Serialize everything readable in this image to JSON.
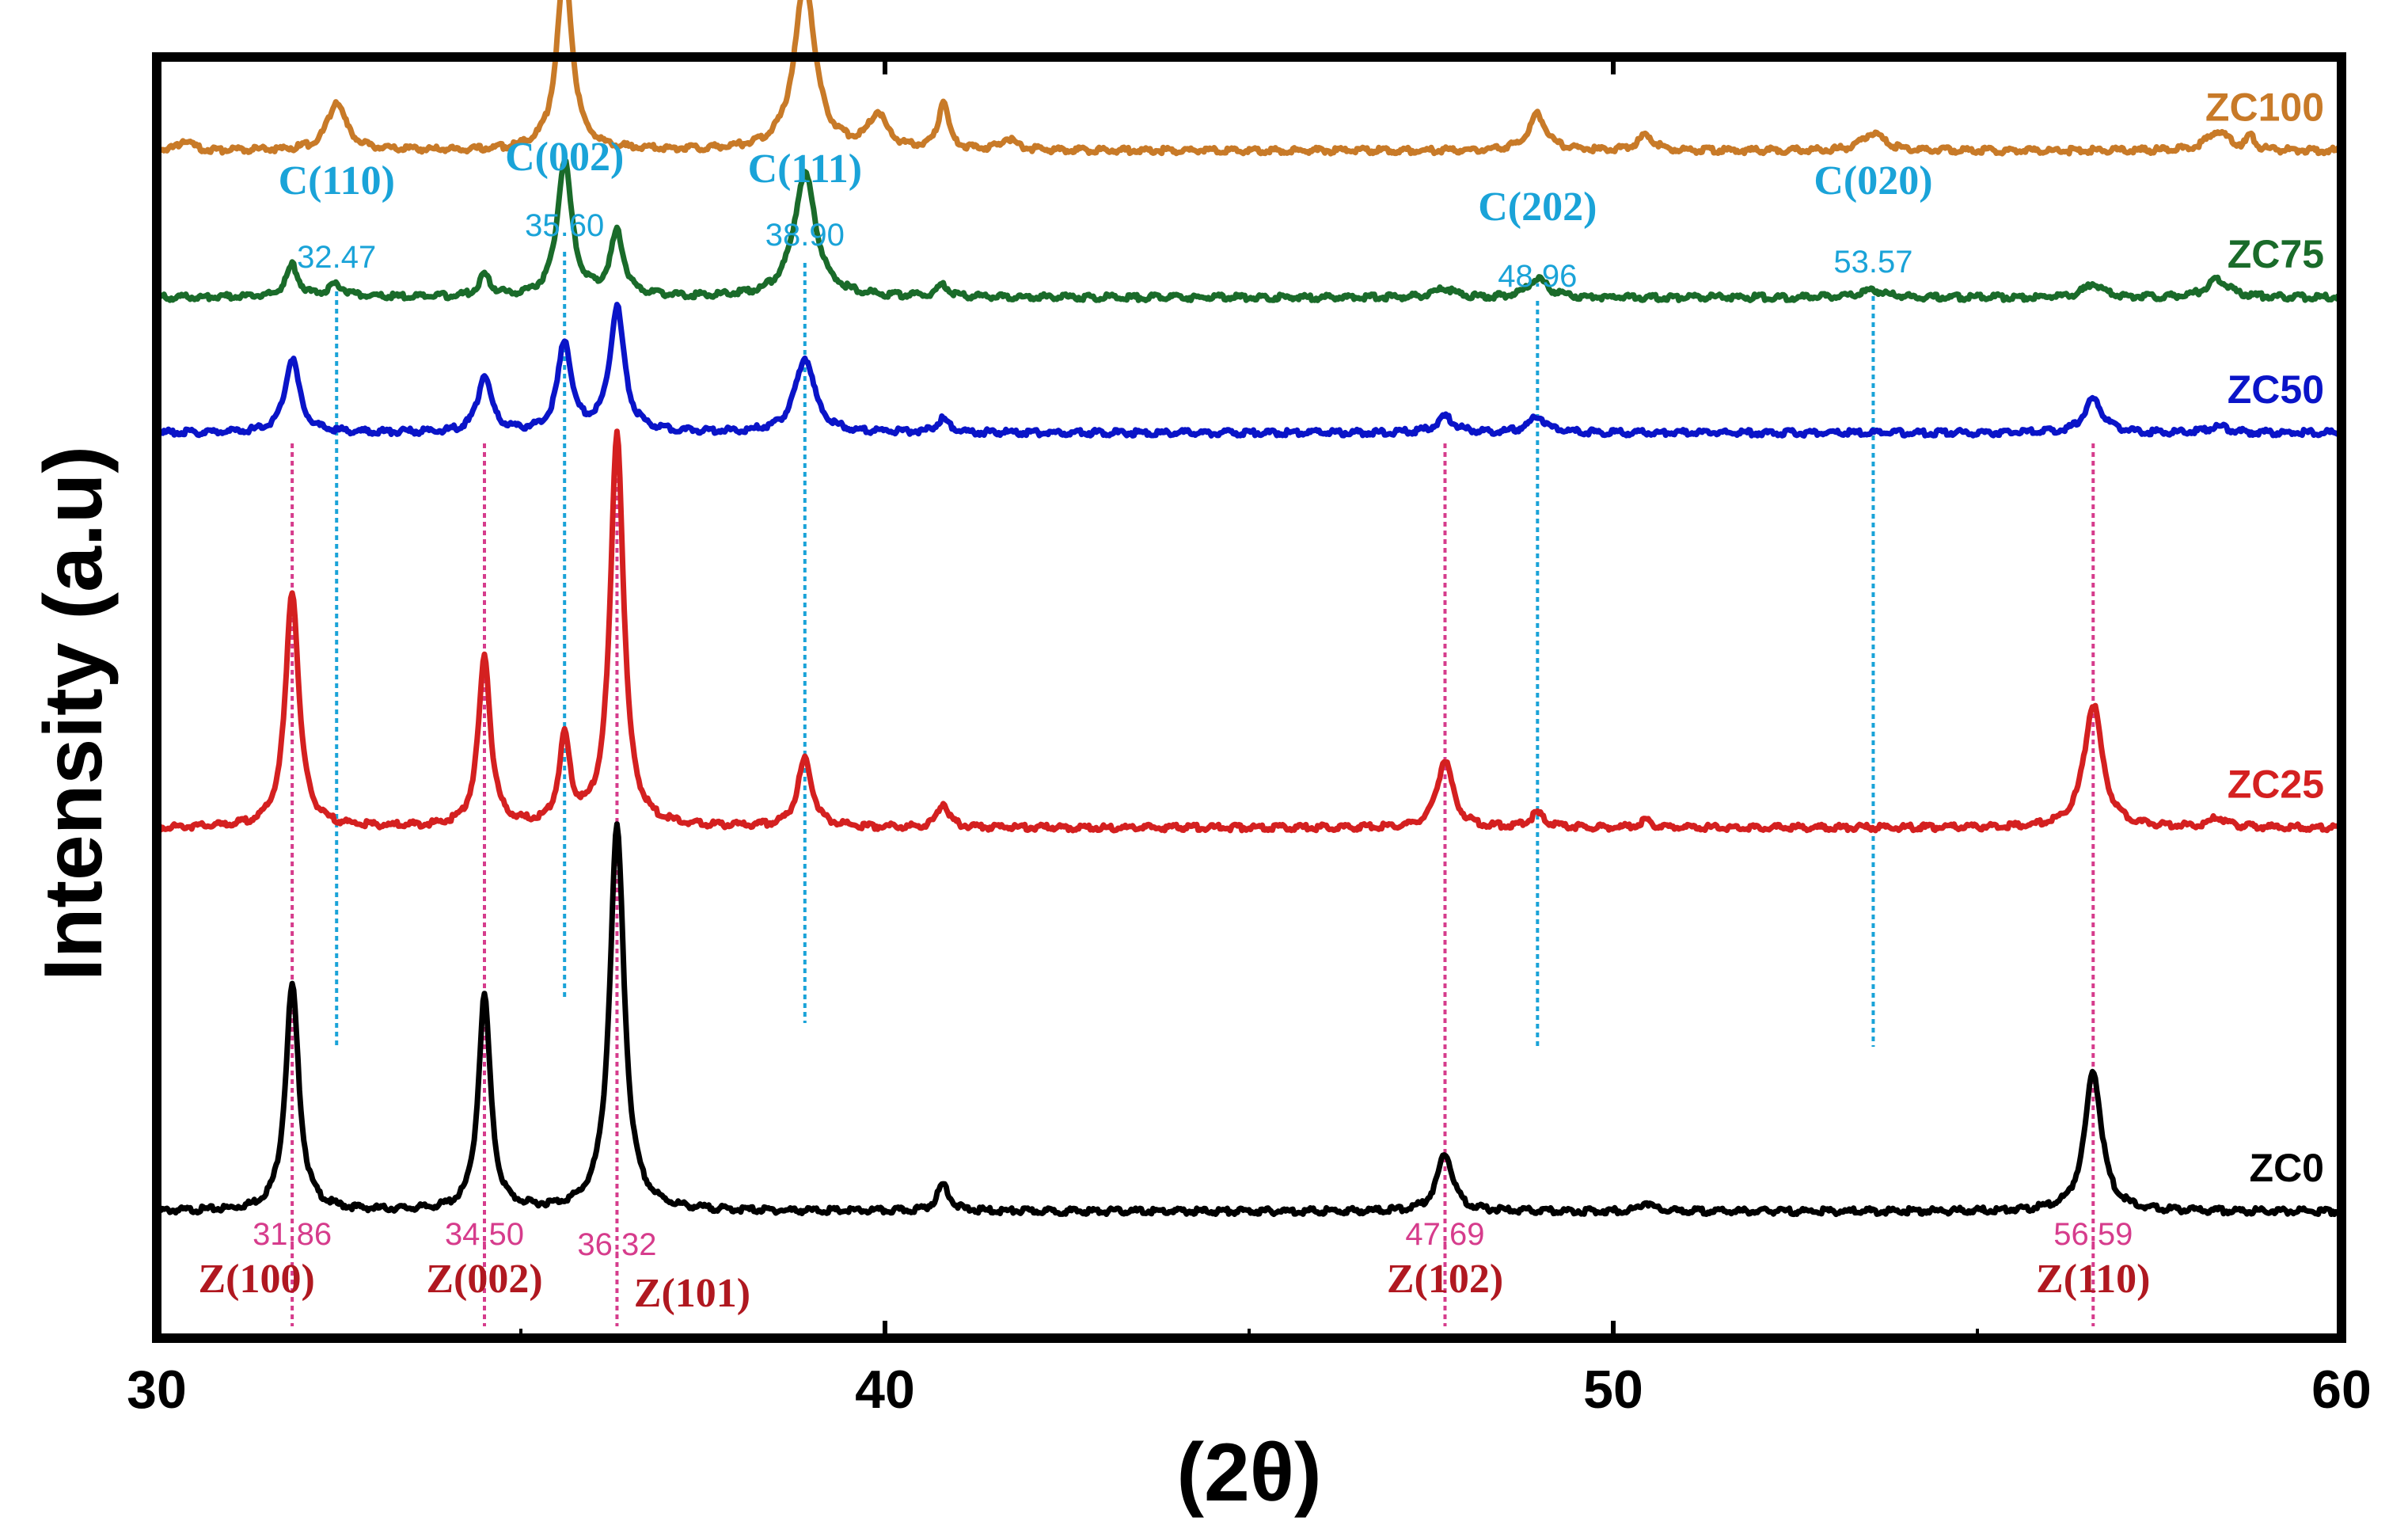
{
  "chart_data": {
    "type": "line",
    "title": "",
    "xlabel": "(2θ)",
    "ylabel": "Intensity (a.u)",
    "xlim": [
      30,
      60
    ],
    "x_ticks": [
      30,
      40,
      50,
      60
    ],
    "x_tick_labels": [
      "30",
      "40",
      "50",
      "60"
    ],
    "y_ticks": [],
    "grid": false,
    "legend": "inline labels at right end of each trace",
    "colors": {
      "ZC0": "#000000",
      "ZC25": "#d42020",
      "ZC50": "#0a14c8",
      "ZC75": "#1a6b2a",
      "ZC100": "#c87a28",
      "c_phase": "#1aa3d8",
      "z_phase": "#d63c8c",
      "z_phase_label": "#b01820"
    },
    "series": [
      {
        "name": "ZC0",
        "baseline": 0,
        "peaks": [
          {
            "x": 31.86,
            "h": 100,
            "w": 0.22
          },
          {
            "x": 34.5,
            "h": 95,
            "w": 0.2
          },
          {
            "x": 36.32,
            "h": 170,
            "w": 0.24
          },
          {
            "x": 40.8,
            "h": 12,
            "w": 0.2
          },
          {
            "x": 47.69,
            "h": 26,
            "w": 0.26
          },
          {
            "x": 50.45,
            "h": 4,
            "w": 0.2
          },
          {
            "x": 56.59,
            "h": 62,
            "w": 0.28
          }
        ]
      },
      {
        "name": "ZC25",
        "baseline": 170,
        "peaks": [
          {
            "x": 31.86,
            "h": 105,
            "w": 0.22
          },
          {
            "x": 34.5,
            "h": 75,
            "w": 0.2
          },
          {
            "x": 35.6,
            "h": 38,
            "w": 0.18
          },
          {
            "x": 36.32,
            "h": 175,
            "w": 0.22
          },
          {
            "x": 38.9,
            "h": 30,
            "w": 0.24
          },
          {
            "x": 40.8,
            "h": 11,
            "w": 0.18
          },
          {
            "x": 47.69,
            "h": 30,
            "w": 0.26
          },
          {
            "x": 48.96,
            "h": 6,
            "w": 0.24
          },
          {
            "x": 50.45,
            "h": 3,
            "w": 0.2
          },
          {
            "x": 56.59,
            "h": 55,
            "w": 0.3
          },
          {
            "x": 58.3,
            "h": 4,
            "w": 0.3
          }
        ]
      },
      {
        "name": "ZC50",
        "baseline": 345,
        "peaks": [
          {
            "x": 31.86,
            "h": 33,
            "w": 0.24
          },
          {
            "x": 34.5,
            "h": 25,
            "w": 0.22
          },
          {
            "x": 35.6,
            "h": 40,
            "w": 0.22
          },
          {
            "x": 36.32,
            "h": 55,
            "w": 0.24
          },
          {
            "x": 38.9,
            "h": 33,
            "w": 0.32
          },
          {
            "x": 40.8,
            "h": 6,
            "w": 0.2
          },
          {
            "x": 47.69,
            "h": 7,
            "w": 0.3
          },
          {
            "x": 48.96,
            "h": 7,
            "w": 0.3
          },
          {
            "x": 56.59,
            "h": 15,
            "w": 0.3
          },
          {
            "x": 58.3,
            "h": 3,
            "w": 0.3
          }
        ]
      },
      {
        "name": "ZC75",
        "baseline": 405,
        "peaks": [
          {
            "x": 31.86,
            "h": 14,
            "w": 0.2
          },
          {
            "x": 32.47,
            "h": 5,
            "w": 0.3
          },
          {
            "x": 34.5,
            "h": 9,
            "w": 0.2
          },
          {
            "x": 35.6,
            "h": 60,
            "w": 0.24
          },
          {
            "x": 36.32,
            "h": 28,
            "w": 0.22
          },
          {
            "x": 38.9,
            "h": 55,
            "w": 0.36
          },
          {
            "x": 40.8,
            "h": 5,
            "w": 0.2
          },
          {
            "x": 47.69,
            "h": 4,
            "w": 0.3
          },
          {
            "x": 48.96,
            "h": 9,
            "w": 0.3
          },
          {
            "x": 53.57,
            "h": 3,
            "w": 0.4
          },
          {
            "x": 56.59,
            "h": 6,
            "w": 0.3
          },
          {
            "x": 58.3,
            "h": 8,
            "w": 0.35
          }
        ]
      },
      {
        "name": "ZC100",
        "baseline": 470,
        "peaks": [
          {
            "x": 30.4,
            "h": 5,
            "w": 0.2
          },
          {
            "x": 32.47,
            "h": 22,
            "w": 0.3
          },
          {
            "x": 35.6,
            "h": 82,
            "w": 0.25
          },
          {
            "x": 38.9,
            "h": 75,
            "w": 0.34
          },
          {
            "x": 39.9,
            "h": 15,
            "w": 0.3
          },
          {
            "x": 40.8,
            "h": 22,
            "w": 0.15
          },
          {
            "x": 41.7,
            "h": 5,
            "w": 0.25
          },
          {
            "x": 48.96,
            "h": 16,
            "w": 0.3
          },
          {
            "x": 50.45,
            "h": 7,
            "w": 0.25
          },
          {
            "x": 53.57,
            "h": 8,
            "w": 0.35
          },
          {
            "x": 58.3,
            "h": 9,
            "w": 0.35
          },
          {
            "x": 58.75,
            "h": 6,
            "w": 0.12
          }
        ]
      }
    ],
    "annotations": {
      "c_phase": [
        {
          "x": 32.47,
          "name": "C(110)",
          "value": "32.47"
        },
        {
          "x": 35.6,
          "name": "C(002)",
          "value": "35.60"
        },
        {
          "x": 38.9,
          "name": "C(111)",
          "value": "38.90"
        },
        {
          "x": 48.96,
          "name": "C(202)",
          "value": "48.96"
        },
        {
          "x": 53.57,
          "name": "C(020)",
          "value": "53.57"
        }
      ],
      "z_phase": [
        {
          "x": 31.86,
          "name": "Z(100)",
          "value": "31.86"
        },
        {
          "x": 34.5,
          "name": "Z(002)",
          "value": "34.50"
        },
        {
          "x": 36.32,
          "name": "Z(101)",
          "value": "36.32"
        },
        {
          "x": 47.69,
          "name": "Z(102)",
          "value": "47.69"
        },
        {
          "x": 56.59,
          "name": "Z(110)",
          "value": "56.59"
        }
      ]
    }
  }
}
